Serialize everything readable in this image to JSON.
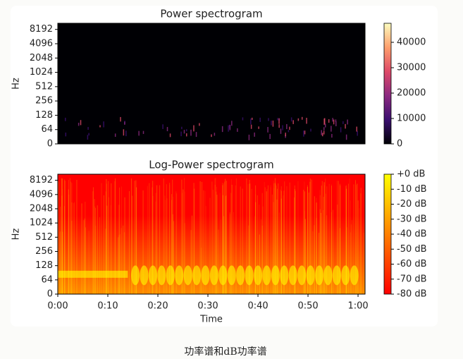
{
  "chart_data": [
    {
      "type": "spectrogram",
      "title": "Power spectrogram",
      "y_label": "Hz",
      "xlim": [
        0,
        61.4
      ],
      "ylim": [
        0,
        11025
      ],
      "y_scale": "symlog",
      "linthresh": 64,
      "yticks": [
        0,
        64,
        128,
        256,
        512,
        1024,
        2048,
        4096,
        8192
      ],
      "colormap": [
        "#000004",
        "#3b0f70",
        "#8c2981",
        "#de4968",
        "#fe9f6d",
        "#fcfdbf"
      ],
      "colorbar": {
        "lim": [
          0,
          47500
        ],
        "ticks": [
          0,
          10000,
          20000,
          30000,
          40000
        ]
      }
    },
    {
      "type": "spectrogram",
      "title": "Log-Power spectrogram",
      "y_label": "Hz",
      "x_label": "Time",
      "xlim": [
        0,
        61.4
      ],
      "ylim": [
        0,
        11025
      ],
      "y_scale": "symlog",
      "linthresh": 64,
      "xticks": [
        {
          "value": 0,
          "label": "0:00"
        },
        {
          "value": 10,
          "label": "0:10"
        },
        {
          "value": 20,
          "label": "0:20"
        },
        {
          "value": 30,
          "label": "0:30"
        },
        {
          "value": 40,
          "label": "0:40"
        },
        {
          "value": 50,
          "label": "0:50"
        },
        {
          "value": 60,
          "label": "1:00"
        }
      ],
      "yticks": [
        0,
        64,
        128,
        256,
        512,
        1024,
        2048,
        4096,
        8192
      ],
      "colormap": [
        "#ff0000",
        "#ffff00"
      ],
      "colorbar": {
        "lim": [
          -80,
          0
        ],
        "ticks": [
          {
            "value": 0,
            "label": "+0 dB"
          },
          {
            "value": -10,
            "label": "-10 dB"
          },
          {
            "value": -20,
            "label": "-20 dB"
          },
          {
            "value": -30,
            "label": "-30 dB"
          },
          {
            "value": -40,
            "label": "-40 dB"
          },
          {
            "value": -50,
            "label": "-50 dB"
          },
          {
            "value": -60,
            "label": "-60 dB"
          },
          {
            "value": -70,
            "label": "-70 dB"
          },
          {
            "value": -80,
            "label": "-80 dB"
          }
        ]
      }
    }
  ],
  "caption": "功率谱和dB功率谱"
}
